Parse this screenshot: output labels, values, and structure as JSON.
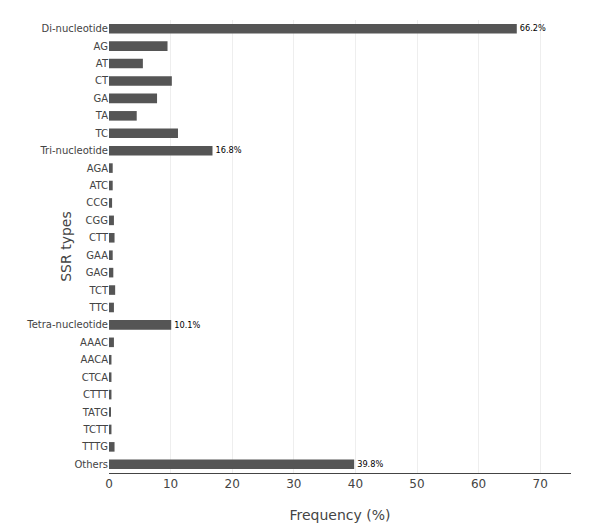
{
  "chart_data": {
    "type": "bar",
    "orientation": "horizontal",
    "xlabel": "Frequency (%)",
    "ylabel": "SSR types",
    "categories": [
      "Di-nucleotide",
      "AG",
      "AT",
      "CT",
      "GA",
      "TA",
      "TC",
      "Tri-nucleotide",
      "AGA",
      "ATC",
      "CCG",
      "CGG",
      "CTT",
      "GAA",
      "GAG",
      "TCT",
      "TTC",
      "Tetra-nucleotide",
      "AAAC",
      "AACA",
      "CTCA",
      "CTTT",
      "TATG",
      "TCTT",
      "TTTG",
      "Others"
    ],
    "values": [
      66.2,
      9.5,
      5.5,
      10.2,
      7.8,
      4.5,
      11.2,
      16.8,
      0.6,
      0.6,
      0.5,
      0.8,
      0.9,
      0.6,
      0.7,
      1.0,
      0.8,
      10.1,
      0.8,
      0.4,
      0.4,
      0.4,
      0.3,
      0.4,
      0.9,
      39.8
    ],
    "value_labels": [
      "66.2%",
      null,
      null,
      null,
      null,
      null,
      null,
      "16.8%",
      null,
      null,
      null,
      null,
      null,
      null,
      null,
      null,
      null,
      "10.1%",
      null,
      null,
      null,
      null,
      null,
      null,
      null,
      "39.8%"
    ],
    "data_labels": true,
    "color": "#555555",
    "xlim": [
      0,
      75
    ],
    "xticks": [
      0,
      10,
      20,
      30,
      40,
      50,
      60,
      70
    ],
    "grid": true
  }
}
